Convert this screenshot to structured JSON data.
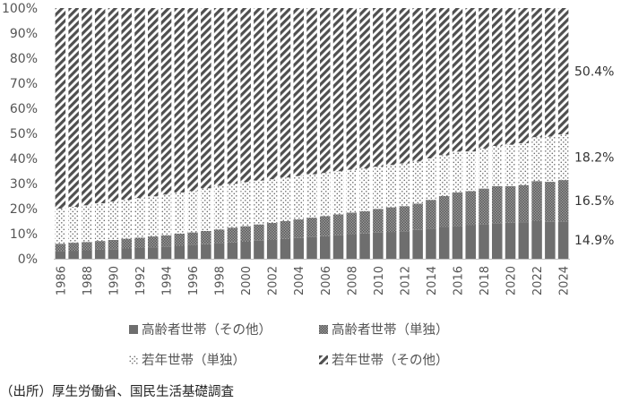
{
  "chart_data": {
    "type": "bar",
    "stacked": true,
    "categories": [
      "1986",
      "1987",
      "1988",
      "1989",
      "1990",
      "1991",
      "1992",
      "1993",
      "1994",
      "1995",
      "1996",
      "1997",
      "1998",
      "1999",
      "2000",
      "2001",
      "2002",
      "2003",
      "2004",
      "2005",
      "2006",
      "2007",
      "2008",
      "2009",
      "2010",
      "2011",
      "2012",
      "2013",
      "2014",
      "2015",
      "2016",
      "2017",
      "2018",
      "2019",
      "2020",
      "2021",
      "2022",
      "2023",
      "2024"
    ],
    "x_tick_labels": [
      "1986",
      "1988",
      "1990",
      "1992",
      "1994",
      "1996",
      "1998",
      "2000",
      "2002",
      "2004",
      "2006",
      "2008",
      "2010",
      "2012",
      "2014",
      "2016",
      "2018",
      "2020",
      "2022",
      "2024"
    ],
    "y_tick_labels": [
      "0%",
      "10%",
      "20%",
      "30%",
      "40%",
      "50%",
      "60%",
      "70%",
      "80%",
      "90%",
      "100%"
    ],
    "ylim": [
      0,
      100
    ],
    "series": [
      {
        "name": "高齢者世帯（その他）",
        "color": "#6e6e6e",
        "pattern": "solid",
        "values": [
          3.0,
          3.2,
          3.4,
          3.6,
          3.8,
          4.1,
          4.3,
          4.6,
          4.9,
          5.2,
          5.5,
          5.8,
          6.1,
          6.5,
          6.8,
          7.2,
          7.5,
          7.9,
          8.3,
          8.7,
          9.0,
          9.4,
          9.8,
          10.1,
          10.4,
          10.7,
          11.0,
          11.5,
          12.0,
          12.5,
          13.0,
          13.4,
          13.8,
          14.2,
          14.4,
          14.6,
          15.0,
          14.7,
          14.9
        ]
      },
      {
        "name": "高齢者世帯（単独）",
        "color": "#777777",
        "pattern": "checker",
        "values": [
          3.0,
          3.2,
          3.3,
          3.5,
          3.7,
          3.9,
          4.1,
          4.3,
          4.5,
          4.8,
          5.0,
          5.3,
          5.6,
          5.9,
          6.2,
          6.5,
          6.8,
          7.1,
          7.4,
          7.7,
          8.0,
          8.3,
          8.6,
          8.9,
          9.5,
          9.8,
          10.0,
          10.5,
          11.5,
          12.5,
          13.5,
          13.6,
          14.2,
          14.8,
          14.6,
          14.8,
          16.0,
          16.0,
          16.5
        ]
      },
      {
        "name": "若年世帯（単独）",
        "color": "#888888",
        "pattern": "dots",
        "values": [
          14.0,
          14.3,
          14.6,
          15.0,
          15.3,
          15.5,
          15.8,
          16.0,
          16.2,
          16.4,
          16.5,
          17.0,
          17.4,
          17.5,
          17.6,
          17.5,
          17.4,
          17.4,
          17.3,
          17.3,
          17.2,
          17.2,
          17.1,
          17.0,
          16.8,
          16.9,
          17.0,
          16.8,
          16.5,
          16.3,
          16.2,
          15.8,
          16.0,
          16.0,
          16.5,
          16.7,
          17.5,
          18.0,
          18.2
        ]
      },
      {
        "name": "若年世帯（その他）",
        "color": "#555555",
        "pattern": "diagonal",
        "values": [
          80.0,
          79.3,
          78.7,
          77.9,
          77.2,
          76.5,
          75.8,
          75.1,
          74.4,
          73.6,
          73.0,
          71.9,
          70.9,
          70.1,
          69.4,
          68.8,
          68.3,
          67.6,
          67.0,
          66.3,
          65.8,
          65.1,
          64.5,
          64.0,
          63.3,
          62.6,
          62.0,
          61.2,
          60.0,
          58.7,
          57.3,
          57.2,
          56.0,
          55.0,
          54.5,
          53.9,
          51.5,
          51.3,
          50.4
        ]
      }
    ],
    "end_labels": [
      "50.4%",
      "18.2%",
      "16.5%",
      "14.9%"
    ],
    "legend_position": "bottom",
    "grid": false
  },
  "source_note": "（出所）厚生労働省、国民生活基礎調査"
}
